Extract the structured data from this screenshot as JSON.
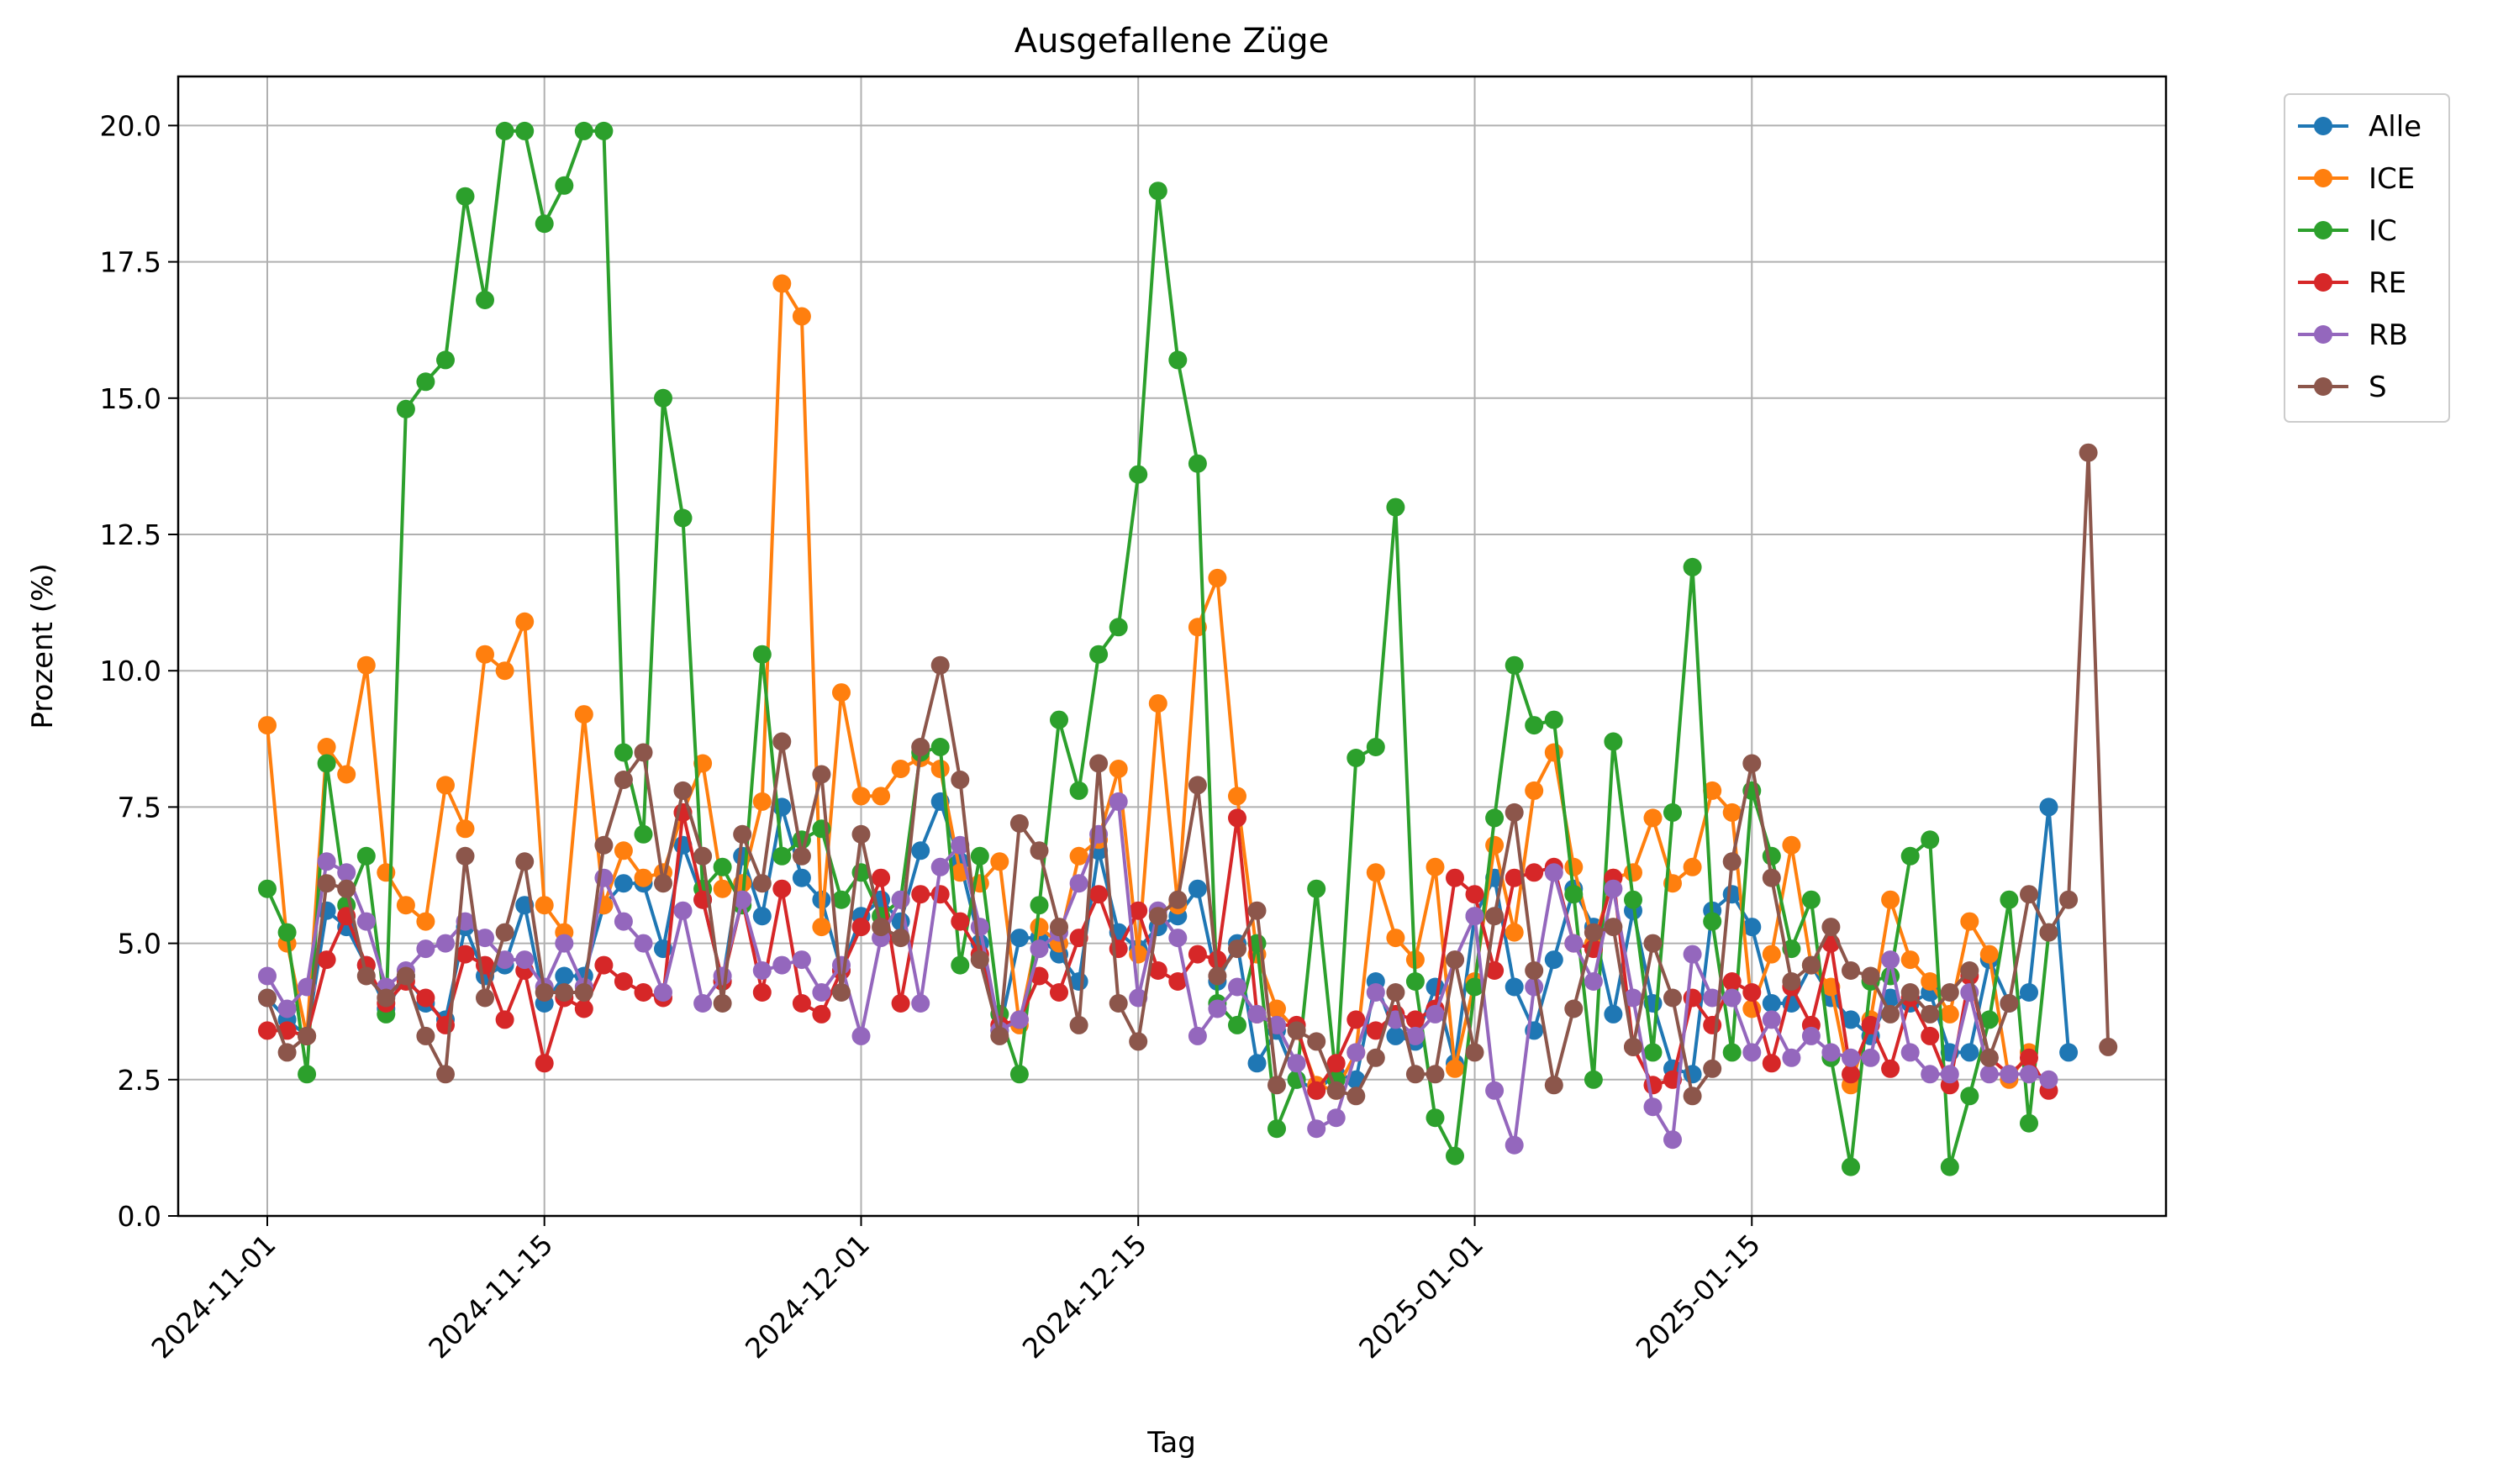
{
  "chart_data": {
    "type": "line",
    "title": "Ausgefallene Züge",
    "xlabel": "Tag",
    "ylabel": "Prozent (%)",
    "x_start": "2024-11-01",
    "x_ticks": [
      "2024-11-01",
      "2024-11-15",
      "2024-12-01",
      "2024-12-15",
      "2025-01-01",
      "2025-01-15"
    ],
    "y_ticks": [
      "0.0",
      "2.5",
      "5.0",
      "7.5",
      "10.0",
      "12.5",
      "15.0",
      "17.5",
      "20.0"
    ],
    "ylim": [
      0,
      20.9
    ],
    "grid": true,
    "legend_position": "outside top-right",
    "series": [
      {
        "name": "Alle",
        "color": "#1f77b4",
        "values": [
          4.0,
          3.6,
          3.3,
          5.6,
          5.3,
          4.6,
          3.8,
          4.4,
          3.9,
          3.6,
          5.3,
          4.4,
          4.6,
          5.7,
          3.9,
          4.4,
          4.4,
          5.7,
          6.1,
          6.1,
          4.9,
          6.8,
          5.8,
          4.3,
          6.6,
          5.5,
          7.5,
          6.2,
          5.8,
          4.5,
          5.5,
          5.8,
          5.4,
          6.7,
          7.6,
          6.5,
          5.0,
          3.4,
          5.1,
          5.1,
          4.8,
          4.3,
          6.7,
          5.2,
          4.9,
          5.3,
          5.5,
          6.0,
          4.3,
          5.0,
          2.8,
          3.4,
          2.5,
          2.3,
          2.6,
          2.5,
          4.3,
          3.3,
          3.2,
          4.2,
          2.8,
          5.5,
          6.2,
          4.2,
          3.4,
          4.7,
          6.0,
          5.3,
          3.7,
          5.6,
          3.9,
          2.7,
          2.6,
          5.6,
          5.9,
          5.3,
          3.9,
          3.9,
          4.6,
          4.0,
          3.6,
          3.3,
          4.0,
          3.9,
          4.1,
          3.0,
          3.0,
          4.7,
          3.9,
          4.1,
          7.5,
          3.0
        ]
      },
      {
        "name": "ICE",
        "color": "#ff7f0e",
        "values": [
          9.0,
          5.0,
          3.3,
          8.6,
          8.1,
          10.1,
          6.3,
          5.7,
          5.4,
          7.9,
          7.1,
          10.3,
          10.0,
          10.9,
          5.7,
          5.2,
          9.2,
          5.7,
          6.7,
          6.2,
          6.3,
          7.4,
          8.3,
          6.0,
          6.1,
          7.6,
          17.1,
          16.5,
          5.3,
          9.6,
          7.7,
          7.7,
          8.2,
          8.4,
          8.2,
          6.3,
          6.1,
          6.5,
          3.5,
          5.3,
          5.0,
          6.6,
          6.9,
          8.2,
          4.8,
          9.4,
          5.7,
          10.8,
          11.7,
          7.7,
          4.8,
          3.8,
          3.4,
          2.4,
          2.3,
          3.0,
          6.3,
          5.1,
          4.7,
          6.4,
          2.7,
          4.3,
          6.8,
          5.2,
          7.8,
          8.5,
          6.4,
          5.0,
          6.2,
          6.3,
          7.3,
          6.1,
          6.4,
          7.8,
          7.4,
          3.8,
          4.8,
          6.8,
          4.6,
          4.2,
          2.4,
          3.6,
          5.8,
          4.7,
          4.3,
          3.7,
          5.4,
          4.8,
          2.5,
          3.0
        ]
      },
      {
        "name": "IC",
        "color": "#2ca02c",
        "values": [
          6.0,
          5.2,
          2.6,
          8.3,
          5.7,
          6.6,
          3.7,
          14.8,
          15.3,
          15.7,
          18.7,
          16.8,
          19.9,
          19.9,
          18.2,
          18.9,
          19.9,
          19.9,
          8.5,
          7.0,
          15.0,
          12.8,
          6.0,
          6.4,
          5.7,
          10.3,
          6.6,
          6.9,
          7.1,
          5.8,
          6.3,
          5.5,
          5.8,
          8.5,
          8.6,
          4.6,
          6.6,
          3.7,
          2.6,
          5.7,
          9.1,
          7.8,
          10.3,
          10.8,
          13.6,
          18.8,
          15.7,
          13.8,
          3.9,
          3.5,
          5.0,
          1.6,
          2.5,
          6.0,
          2.5,
          8.4,
          8.6,
          13.0,
          4.3,
          1.8,
          1.1,
          4.2,
          7.3,
          10.1,
          9.0,
          9.1,
          5.9,
          2.5,
          8.7,
          5.8,
          3.0,
          7.4,
          11.9,
          5.4,
          3.0,
          7.8,
          6.6,
          4.9,
          5.8,
          2.9,
          0.9,
          4.3,
          4.4,
          6.6,
          6.9,
          0.9,
          2.2,
          3.6,
          5.8,
          1.7,
          5.2
        ]
      },
      {
        "name": "RE",
        "color": "#d62728",
        "values": [
          3.4,
          3.4,
          3.3,
          4.7,
          5.5,
          4.6,
          3.9,
          4.3,
          4.0,
          3.5,
          4.8,
          4.6,
          3.6,
          4.5,
          2.8,
          4.0,
          3.8,
          4.6,
          4.3,
          4.1,
          4.0,
          7.4,
          5.8,
          4.3,
          5.8,
          4.1,
          6.0,
          3.9,
          3.7,
          4.5,
          5.3,
          6.2,
          3.9,
          5.9,
          5.9,
          5.4,
          4.8,
          3.5,
          3.6,
          4.4,
          4.1,
          5.1,
          5.9,
          4.9,
          5.6,
          4.5,
          4.3,
          4.8,
          4.7,
          7.3,
          3.7,
          3.5,
          3.5,
          2.3,
          2.8,
          3.6,
          3.4,
          3.7,
          3.6,
          3.8,
          6.2,
          5.9,
          4.5,
          6.2,
          6.3,
          6.4,
          5.0,
          4.9,
          6.2,
          3.1,
          2.4,
          2.5,
          4.0,
          3.5,
          4.3,
          4.1,
          2.8,
          4.2,
          3.5,
          5.0,
          2.6,
          3.5,
          2.7,
          4.0,
          3.3,
          2.4,
          4.4,
          2.9,
          2.6,
          2.9,
          2.3
        ]
      },
      {
        "name": "RB",
        "color": "#9467bd",
        "values": [
          4.4,
          3.8,
          4.2,
          6.5,
          6.3,
          5.4,
          4.2,
          4.5,
          4.9,
          5.0,
          5.4,
          5.1,
          4.7,
          4.7,
          4.2,
          5.0,
          4.2,
          6.2,
          5.4,
          5.0,
          4.1,
          5.6,
          3.9,
          4.4,
          5.8,
          4.5,
          4.6,
          4.7,
          4.1,
          4.6,
          3.3,
          5.1,
          5.8,
          3.9,
          6.4,
          6.8,
          5.3,
          3.4,
          3.6,
          4.9,
          5.2,
          6.1,
          7.0,
          7.6,
          4.0,
          5.6,
          5.1,
          3.3,
          3.8,
          4.2,
          3.7,
          3.5,
          2.8,
          1.6,
          1.8,
          3.0,
          4.1,
          3.6,
          3.3,
          3.7,
          4.7,
          5.5,
          2.3,
          1.3,
          4.2,
          6.3,
          5.0,
          4.3,
          6.0,
          4.0,
          2.0,
          1.4,
          4.8,
          4.0,
          4.0,
          3.0,
          3.6,
          2.9,
          3.3,
          3.0,
          2.9,
          2.9,
          4.7,
          3.0,
          2.6,
          2.6,
          4.1,
          2.6,
          2.6,
          2.6,
          2.5
        ]
      },
      {
        "name": "S",
        "color": "#8c564b",
        "values": [
          4.0,
          3.0,
          3.3,
          6.1,
          6.0,
          4.4,
          4.0,
          4.4,
          3.3,
          2.6,
          6.6,
          4.0,
          5.2,
          6.5,
          4.1,
          4.1,
          4.1,
          6.8,
          8.0,
          8.5,
          6.1,
          7.8,
          6.6,
          3.9,
          7.0,
          6.1,
          8.7,
          6.6,
          8.1,
          4.1,
          7.0,
          5.3,
          5.1,
          8.6,
          10.1,
          8.0,
          4.7,
          3.3,
          7.2,
          6.7,
          5.3,
          3.5,
          8.3,
          3.9,
          3.2,
          5.5,
          5.8,
          7.9,
          4.4,
          4.9,
          5.6,
          2.4,
          3.4,
          3.2,
          2.3,
          2.2,
          2.9,
          4.1,
          2.6,
          2.6,
          4.7,
          3.0,
          5.5,
          7.4,
          4.5,
          2.4,
          3.8,
          5.2,
          5.3,
          3.1,
          5.0,
          4.0,
          2.2,
          2.7,
          6.5,
          8.3,
          6.2,
          4.3,
          4.6,
          5.3,
          4.5,
          4.4,
          3.7,
          4.1,
          3.7,
          4.1,
          4.5,
          2.9,
          3.9,
          5.9,
          5.2,
          5.8,
          14.0,
          3.1
        ]
      }
    ]
  }
}
